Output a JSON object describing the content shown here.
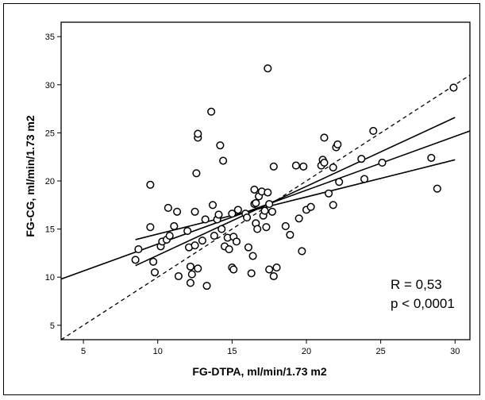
{
  "chart_data": {
    "type": "scatter",
    "xlabel": "FG-DTPA, ml/min/1.73 m2",
    "ylabel": "FG-CG, ml/min/1.73 m2",
    "xlim": [
      3.5,
      31
    ],
    "ylim": [
      3.5,
      36.5
    ],
    "xticks": [
      5,
      10,
      15,
      20,
      25,
      30
    ],
    "yticks": [
      5,
      10,
      15,
      20,
      25,
      30,
      35
    ],
    "grid": false,
    "annotations": [
      "R = 0,53",
      "p < 0,0001"
    ],
    "points": [
      [
        8.5,
        11.8
      ],
      [
        8.7,
        12.9
      ],
      [
        9.5,
        15.2
      ],
      [
        9.5,
        19.6
      ],
      [
        9.7,
        11.6
      ],
      [
        9.8,
        10.5
      ],
      [
        10.2,
        13.2
      ],
      [
        10.3,
        13.7
      ],
      [
        10.6,
        13.9
      ],
      [
        10.7,
        17.2
      ],
      [
        10.8,
        14.3
      ],
      [
        11.1,
        15.3
      ],
      [
        11.3,
        16.8
      ],
      [
        11.4,
        10.1
      ],
      [
        12.0,
        14.8
      ],
      [
        12.1,
        13.1
      ],
      [
        12.2,
        9.4
      ],
      [
        12.3,
        10.3
      ],
      [
        12.2,
        11.1
      ],
      [
        12.5,
        13.3
      ],
      [
        12.5,
        16.8
      ],
      [
        12.6,
        20.8
      ],
      [
        12.7,
        24.5
      ],
      [
        12.7,
        24.9
      ],
      [
        12.7,
        10.9
      ],
      [
        13.0,
        13.8
      ],
      [
        13.2,
        16.0
      ],
      [
        13.3,
        9.1
      ],
      [
        13.6,
        27.2
      ],
      [
        13.7,
        17.5
      ],
      [
        13.8,
        14.3
      ],
      [
        14.0,
        16.0
      ],
      [
        14.1,
        16.5
      ],
      [
        14.2,
        23.7
      ],
      [
        14.3,
        15.0
      ],
      [
        14.4,
        22.1
      ],
      [
        14.5,
        13.2
      ],
      [
        14.7,
        14.1
      ],
      [
        14.8,
        12.9
      ],
      [
        15.0,
        16.6
      ],
      [
        15.1,
        14.2
      ],
      [
        15.0,
        11.0
      ],
      [
        15.1,
        10.8
      ],
      [
        15.3,
        13.7
      ],
      [
        15.4,
        17.0
      ],
      [
        15.9,
        16.6
      ],
      [
        16.0,
        16.2
      ],
      [
        16.1,
        13.1
      ],
      [
        16.3,
        10.4
      ],
      [
        16.4,
        12.2
      ],
      [
        16.5,
        17.6
      ],
      [
        16.5,
        19.1
      ],
      [
        16.6,
        17.7
      ],
      [
        16.6,
        15.6
      ],
      [
        16.7,
        15.0
      ],
      [
        16.8,
        18.4
      ],
      [
        17.0,
        18.9
      ],
      [
        17.1,
        16.4
      ],
      [
        17.2,
        16.9
      ],
      [
        17.3,
        15.2
      ],
      [
        17.4,
        18.8
      ],
      [
        17.4,
        31.7
      ],
      [
        17.5,
        17.6
      ],
      [
        17.5,
        10.8
      ],
      [
        17.7,
        16.8
      ],
      [
        17.8,
        10.1
      ],
      [
        17.8,
        21.5
      ],
      [
        18.0,
        11.0
      ],
      [
        18.6,
        15.3
      ],
      [
        18.9,
        14.4
      ],
      [
        19.3,
        21.6
      ],
      [
        19.5,
        16.1
      ],
      [
        19.7,
        12.7
      ],
      [
        19.8,
        21.5
      ],
      [
        20.0,
        17.0
      ],
      [
        20.3,
        17.3
      ],
      [
        21.0,
        21.6
      ],
      [
        21.1,
        22.2
      ],
      [
        21.2,
        21.9
      ],
      [
        21.2,
        24.5
      ],
      [
        21.5,
        18.7
      ],
      [
        21.8,
        17.5
      ],
      [
        21.8,
        21.4
      ],
      [
        22.0,
        23.5
      ],
      [
        22.1,
        23.8
      ],
      [
        22.2,
        19.9
      ],
      [
        23.7,
        22.3
      ],
      [
        23.9,
        20.2
      ],
      [
        24.5,
        25.2
      ],
      [
        25.1,
        21.9
      ],
      [
        28.4,
        22.4
      ],
      [
        28.8,
        19.2
      ],
      [
        29.9,
        29.7
      ]
    ],
    "lines": [
      {
        "label": "identity",
        "style": "dashed",
        "x": [
          3.5,
          31
        ],
        "y": [
          3.5,
          31
        ]
      },
      {
        "label": "regression",
        "style": "solid",
        "x": [
          3.5,
          31
        ],
        "y": [
          9.8,
          25.2
        ]
      },
      {
        "label": "ci-upper",
        "style": "solid",
        "x": [
          8.5,
          30
        ],
        "y": [
          11.2,
          26.6
        ]
      },
      {
        "label": "ci-lower",
        "style": "solid",
        "x": [
          8.5,
          30
        ],
        "y": [
          13.9,
          22.2
        ]
      }
    ]
  }
}
